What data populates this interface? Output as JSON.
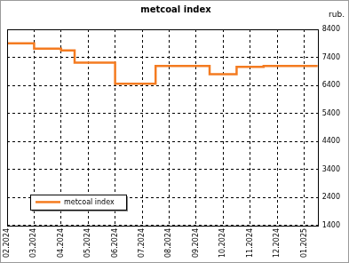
{
  "chart_data": {
    "type": "line",
    "title": "metcoal index",
    "ylabel": "rub.",
    "categories": [
      "02.2024",
      null,
      "03.2024",
      null,
      "04.2024",
      null,
      "05.2024",
      null,
      "06.2024",
      null,
      "07.2024",
      null,
      "08.2024",
      null,
      "09.2024",
      null,
      "10.2024",
      null,
      "11.2024",
      null,
      "12.2024",
      null,
      "01.2025",
      null
    ],
    "series": [
      {
        "name": "metcoal index",
        "color": "#f47b20",
        "values": [
          7900,
          7900,
          7710,
          7710,
          7650,
          7210,
          7210,
          7210,
          6460,
          6460,
          6460,
          7090,
          7090,
          7090,
          7090,
          6800,
          6800,
          7060,
          7060,
          7090,
          7090,
          7090,
          7090,
          7090
        ]
      }
    ],
    "ylim": [
      1400,
      8400
    ],
    "yticks": [
      1400,
      2400,
      3400,
      4400,
      5400,
      6400,
      7400,
      8400
    ],
    "grid": true,
    "legend": "lower left",
    "line_style": "step"
  }
}
